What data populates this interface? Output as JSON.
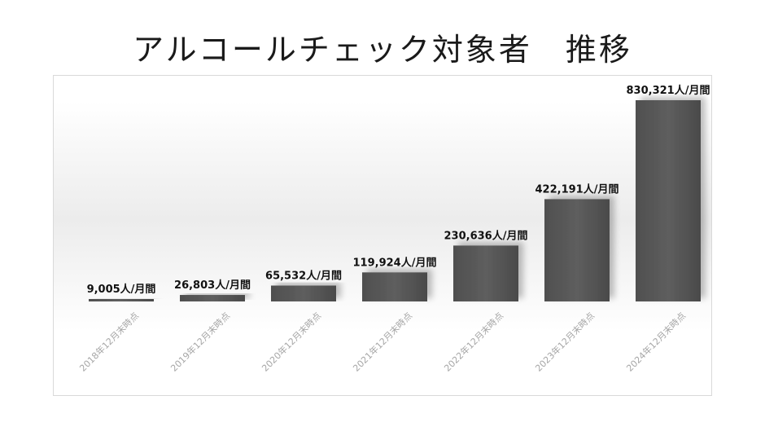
{
  "title": "アルコールチェック対象者　推移",
  "chart_data": {
    "type": "bar",
    "title": "アルコールチェック対象者　推移",
    "categories": [
      "2018年12月末時点",
      "2019年12月末時点",
      "2020年12月末時点",
      "2021年12月末時点",
      "2022年12月末時点",
      "2023年12月末時点",
      "2024年12月末時点"
    ],
    "values": [
      9005,
      26803,
      65532,
      119924,
      230636,
      422191,
      830321
    ],
    "data_labels": [
      "9,005人/月間",
      "26,803人/月間",
      "65,532人/月間",
      "119,924人/月間",
      "230,636人/月間",
      "422,191人/月間",
      "830,321人/月間"
    ],
    "xlabel": "",
    "ylabel": "",
    "ylim": [
      0,
      830321
    ],
    "grid": false,
    "legend": "none",
    "bar_color": "#555555"
  }
}
